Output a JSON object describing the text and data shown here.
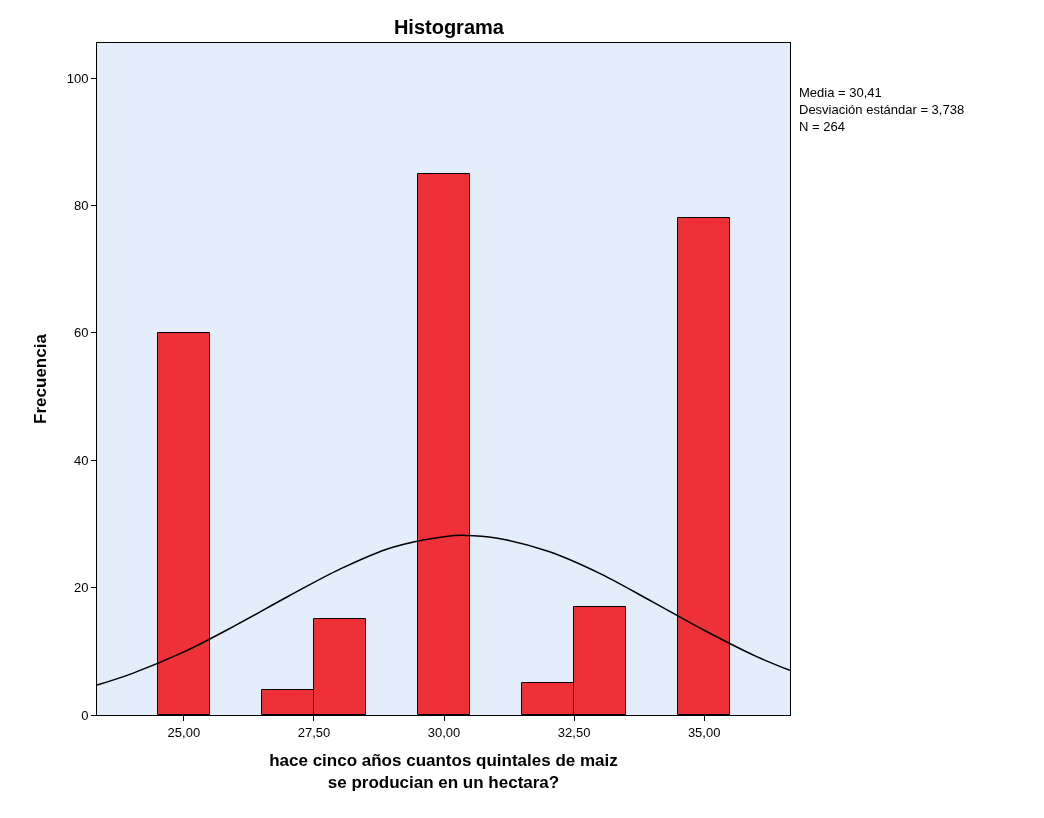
{
  "chart_data": {
    "type": "histogram",
    "title": "Histograma",
    "xlabel": "hace cinco años cuantos quintales de maiz se producian en un hectara?",
    "ylabel": "Frecuencia",
    "annotations": [
      "Media = 30,41",
      "Desviación estándar = 3,738",
      "N = 264"
    ],
    "series": [
      {
        "color": "#ee3038",
        "bins": [
          24.5,
          25.5,
          26.5,
          27.5,
          28.5,
          29.5,
          30.5,
          31.5,
          32.5,
          33.5,
          34.5,
          35.5
        ],
        "values": [
          60,
          0,
          4,
          15,
          0,
          85,
          0,
          5,
          17,
          0,
          78
        ]
      },
      {
        "type": "line",
        "color": "#000000",
        "x": [
          23.33,
          24,
          25,
          26,
          27,
          28,
          29,
          30,
          30.41,
          31,
          32,
          33,
          34,
          35,
          36,
          36.65
        ],
        "values": [
          4.7,
          6.5,
          9.9,
          14.1,
          18.6,
          22.9,
          26.3,
          28.0,
          28.2,
          27.8,
          25.7,
          22.2,
          17.8,
          13.3,
          9.2,
          7.0
        ]
      }
    ],
    "xlim": [
      23.33,
      36.65
    ],
    "xticks": [
      {
        "value": 25,
        "label": "25,00"
      },
      {
        "value": 27.5,
        "label": "27,50"
      },
      {
        "value": 30,
        "label": "30,00"
      },
      {
        "value": 32.5,
        "label": "32,50"
      },
      {
        "value": 35,
        "label": "35,00"
      }
    ],
    "ylim": [
      0,
      105.5
    ],
    "yticks": [
      0,
      20,
      40,
      60,
      80,
      100
    ],
    "grid": false,
    "marker": "none",
    "line_style": "solid"
  }
}
